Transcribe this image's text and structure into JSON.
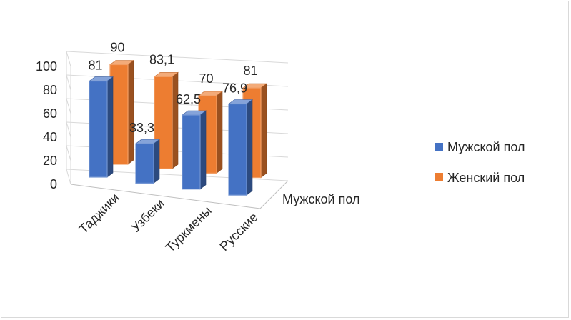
{
  "chart_data": {
    "type": "bar",
    "subtype": "3d-clustered-column",
    "categories": [
      "Таджики",
      "Узбеки",
      "Туркмены",
      "Русские"
    ],
    "series": [
      {
        "name": "Мужской пол",
        "values": [
          81,
          33.3,
          62.5,
          76.9
        ],
        "labels": [
          "81",
          "33,3",
          "62,5",
          "76,9"
        ],
        "color": "#4472c4"
      },
      {
        "name": "Женский пол",
        "values": [
          90,
          83.1,
          70,
          81
        ],
        "labels": [
          "90",
          "83,1",
          "70",
          "81"
        ],
        "color": "#ed7d31"
      }
    ],
    "depth_axis_label": "Мужской пол",
    "y_ticks": [
      "0",
      "20",
      "40",
      "60",
      "80",
      "100"
    ],
    "ylim": [
      0,
      100
    ],
    "grid": true,
    "legend_position": "right"
  }
}
